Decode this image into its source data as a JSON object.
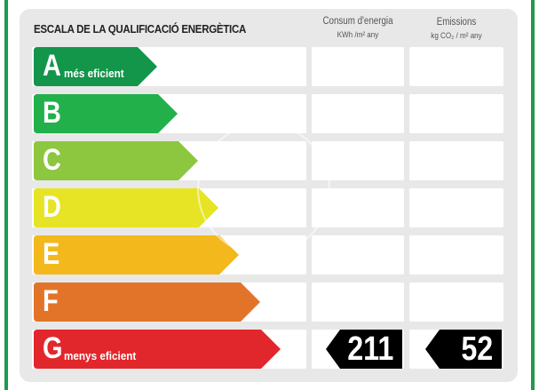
{
  "title": "ESCALA DE LA QUALIFICACIÓ ENERGÈTICA",
  "columns": [
    {
      "label": "Consum d'energia",
      "unit": "KWh /m² any"
    },
    {
      "label": "Emissions",
      "unit": "kg CO₂ / m² any"
    }
  ],
  "ratings": [
    {
      "letter": "A",
      "label": "més eficient",
      "color": "#13954a"
    },
    {
      "letter": "B",
      "label": "",
      "color": "#22b04b"
    },
    {
      "letter": "C",
      "label": "",
      "color": "#8dc63f"
    },
    {
      "letter": "D",
      "label": "",
      "color": "#e6e424"
    },
    {
      "letter": "E",
      "label": "",
      "color": "#f3b81c"
    },
    {
      "letter": "F",
      "label": "",
      "color": "#e2742a"
    },
    {
      "letter": "G",
      "label": "menys eficient",
      "color": "#e2272c"
    }
  ],
  "current": {
    "rating": "G",
    "energy_consumption": "211",
    "emissions": "52",
    "indicator_color": "#000000"
  }
}
